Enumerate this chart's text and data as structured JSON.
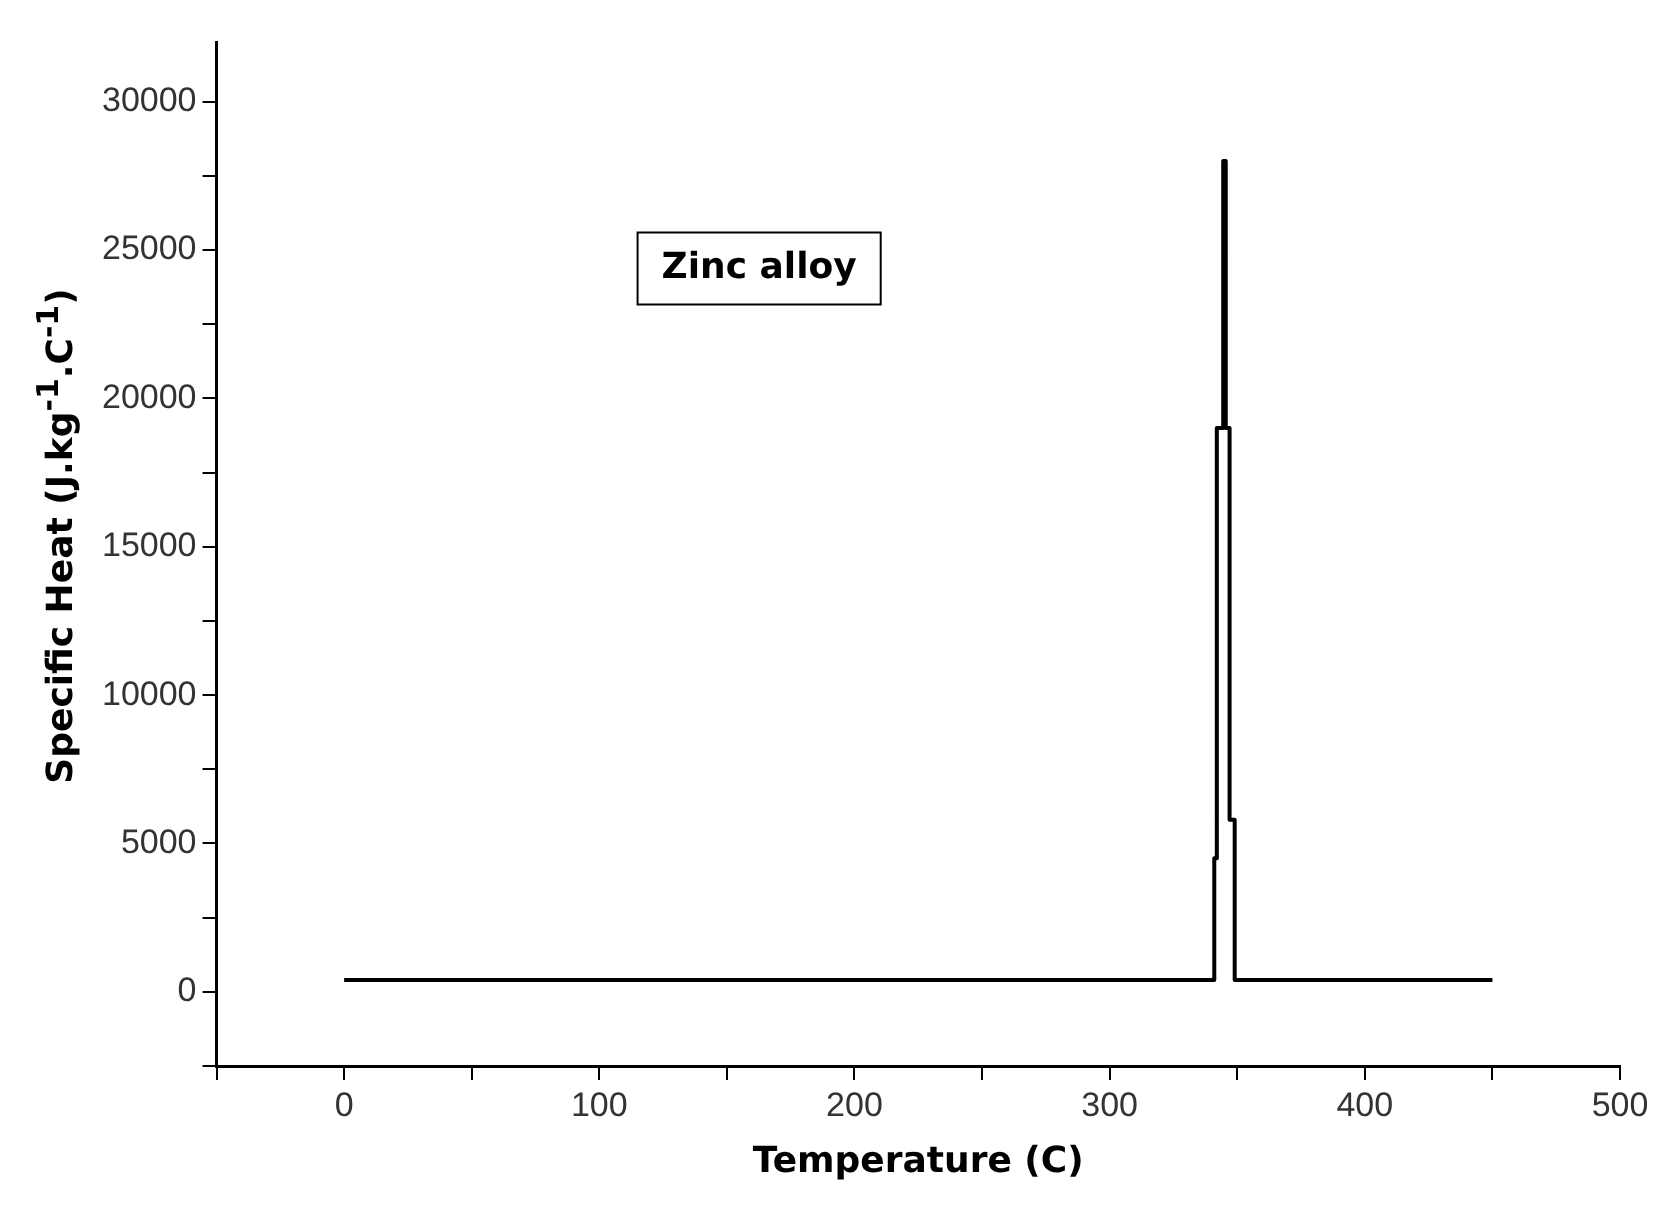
{
  "chart_data": {
    "type": "line",
    "xlabel": "Temperature (C)",
    "ylabel": "Specific Heat (J.kg$^{-1}$.C$^{-1}$)",
    "annotations": [
      "Zinc alloy"
    ],
    "series": [
      {
        "color": "#000000",
        "x": [
          0,
          341,
          341,
          342,
          342,
          344.5,
          344.5,
          345.5,
          345.5,
          347,
          347,
          349,
          349,
          450
        ],
        "values": [
          400,
          400,
          4500,
          4500,
          19000,
          19000,
          28000,
          28000,
          19000,
          19000,
          5800,
          5800,
          400,
          400
        ]
      }
    ],
    "xlim": [
      -50,
      500
    ],
    "xticks": [
      {
        "value": -50,
        "label": null
      },
      0,
      {
        "value": 50,
        "label": null
      },
      100,
      {
        "value": 150,
        "label": null
      },
      200,
      {
        "value": 250,
        "label": null
      },
      300,
      {
        "value": 350,
        "label": null
      },
      400,
      {
        "value": 450,
        "label": null
      },
      500
    ],
    "ylim": [
      -2500,
      32000
    ],
    "yticks": [
      {
        "value": -2500,
        "label": null
      },
      0,
      {
        "value": 2500,
        "label": null
      },
      5000,
      {
        "value": 7500,
        "label": null
      },
      10000,
      {
        "value": 12500,
        "label": null
      },
      15000,
      {
        "value": 17500,
        "label": null
      },
      20000,
      {
        "value": 22500,
        "label": null
      },
      25000,
      {
        "value": 27500,
        "label": null
      },
      30000
    ],
    "grid": false,
    "legend": false,
    "marker": "none",
    "line_style": "solid"
  }
}
